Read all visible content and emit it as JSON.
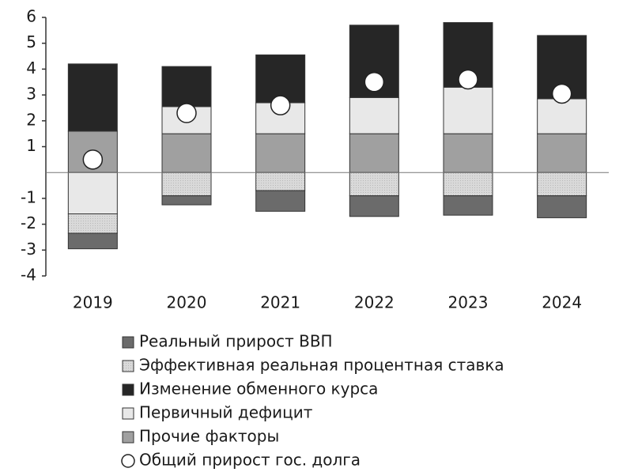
{
  "chart_data": {
    "type": "bar",
    "categories": [
      "2019",
      "2020",
      "2021",
      "2022",
      "2023",
      "2024"
    ],
    "series": [
      {
        "name": "Реальный прирост ВВП",
        "color": "#6b6b6b",
        "values": [
          -0.6,
          -0.35,
          -0.8,
          -0.8,
          -0.75,
          -0.85
        ]
      },
      {
        "name": "Эффективная реальная процентная ставка",
        "color": "#d9d9d9",
        "values": [
          -0.75,
          -0.9,
          -0.7,
          -0.9,
          -0.9,
          -0.9
        ]
      },
      {
        "name": "Изменение обменного курса",
        "color": "#262626",
        "values": [
          2.6,
          1.55,
          1.85,
          2.8,
          2.5,
          2.45
        ]
      },
      {
        "name": "Первичный дефицит",
        "color": "#e8e8e8",
        "values": [
          -1.6,
          1.05,
          1.2,
          1.4,
          1.8,
          1.35
        ]
      },
      {
        "name": "Прочие факторы",
        "color": "#a0a0a0",
        "values": [
          1.6,
          1.5,
          1.5,
          1.5,
          1.5,
          1.5
        ]
      },
      {
        "name": "Общий прирост гос. долга",
        "color": "#ffffff",
        "type": "scatter",
        "values": [
          0.5,
          2.3,
          2.6,
          3.5,
          3.6,
          3.05
        ]
      }
    ],
    "ylim": [
      -4,
      6
    ],
    "yticks": [
      6,
      5,
      4,
      3,
      2,
      1,
      -1,
      -2,
      -3,
      -4
    ],
    "legend": "bottom"
  }
}
